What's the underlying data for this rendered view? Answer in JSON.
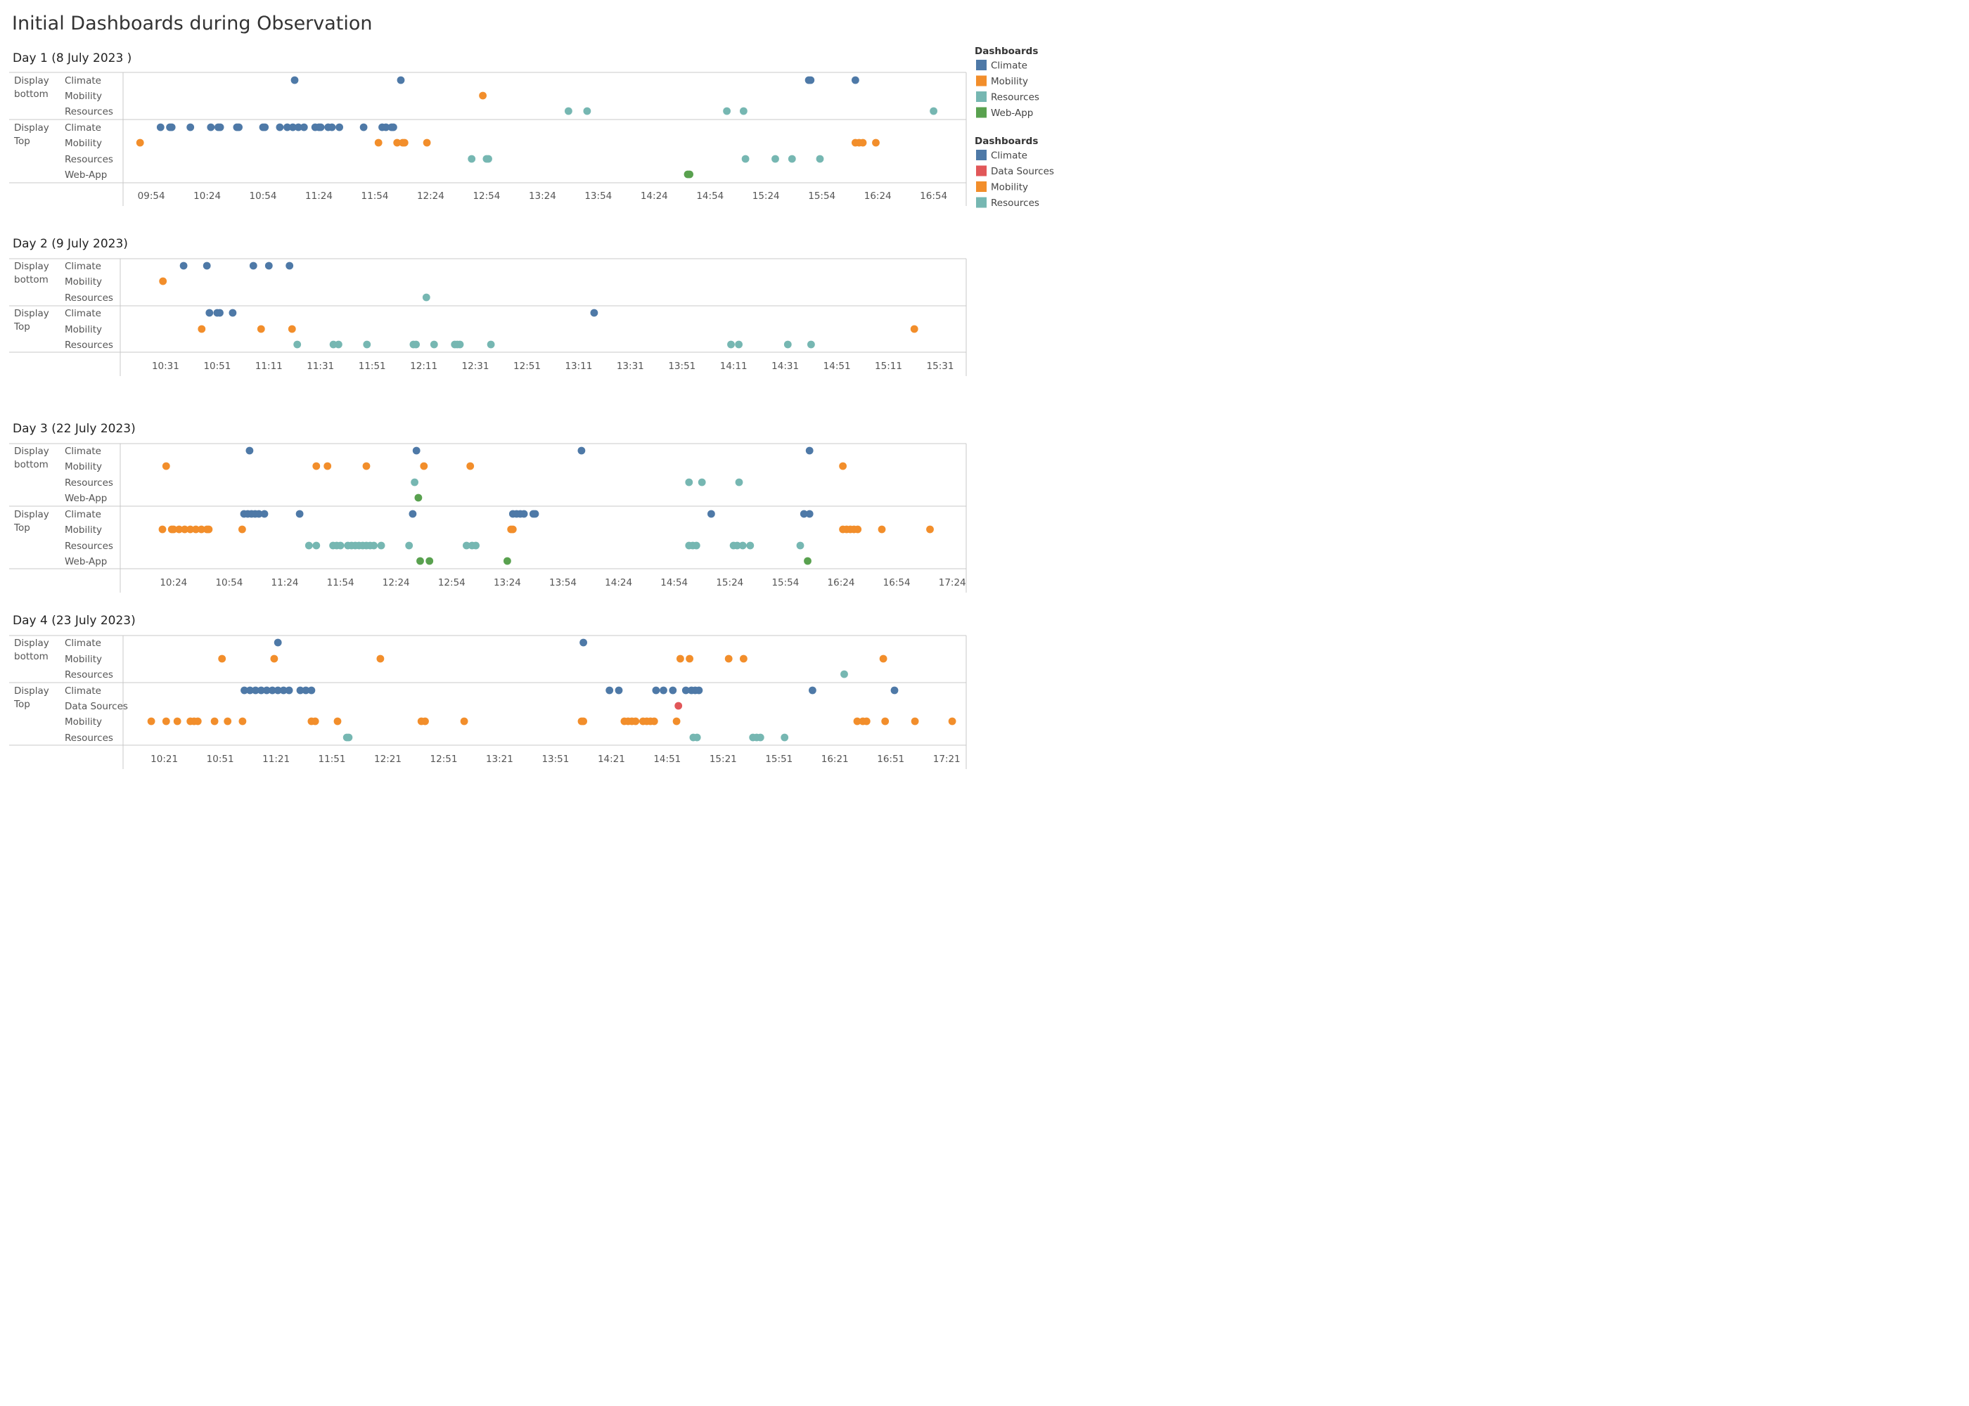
{
  "title": "Initial Dashboards during Observation",
  "colors": {
    "Climate": "#4e79a7",
    "Mobility": "#f28e2b",
    "Resources": "#76b7b2",
    "Web-App": "#59a14f",
    "Data Sources": "#e15759"
  },
  "legends": [
    {
      "title": "Dashboards",
      "items": [
        "Climate",
        "Mobility",
        "Resources",
        "Web-App"
      ]
    },
    {
      "title": "Dashboards",
      "items": [
        "Climate",
        "Data Sources",
        "Mobility",
        "Resources"
      ]
    }
  ],
  "chart_data": [
    {
      "type": "scatter",
      "title": "Day 1 (8 July 2023 )",
      "x_unit": "time of day",
      "xlim": [
        "09:40",
        "17:10"
      ],
      "x_ticks": [
        "09:54",
        "10:24",
        "10:54",
        "11:24",
        "11:54",
        "12:24",
        "12:54",
        "13:24",
        "13:54",
        "14:24",
        "14:54",
        "15:24",
        "15:54",
        "16:24",
        "16:54"
      ],
      "groups": [
        {
          "label": [
            "Display",
            "bottom"
          ],
          "rows": [
            {
              "name": "Climate",
              "times": [
                "11:11",
                "12:08",
                "15:47",
                "15:48",
                "16:12"
              ]
            },
            {
              "name": "Mobility",
              "times": [
                "12:52"
              ]
            },
            {
              "name": "Resources",
              "times": [
                "13:38",
                "13:48",
                "15:03",
                "15:12",
                "16:54"
              ]
            }
          ]
        },
        {
          "label": [
            "Display",
            "Top"
          ],
          "rows": [
            {
              "name": "Climate",
              "times": [
                "09:59",
                "10:04",
                "10:05",
                "10:15",
                "10:26",
                "10:30",
                "10:31",
                "10:40",
                "10:41",
                "10:54",
                "10:55",
                "11:03",
                "11:07",
                "11:10",
                "11:13",
                "11:16",
                "11:22",
                "11:24",
                "11:25",
                "11:29",
                "11:31",
                "11:35",
                "11:48",
                "11:58",
                "12:00",
                "12:03",
                "12:04"
              ]
            },
            {
              "name": "Mobility",
              "times": [
                "09:48",
                "11:56",
                "12:06",
                "12:09",
                "12:10",
                "12:22"
              ]
            },
            {
              "name": "Resources",
              "times": [
                "12:46",
                "12:54",
                "12:55"
              ]
            },
            {
              "name": "Web-App",
              "times": [
                "14:42",
                "14:43"
              ]
            }
          ]
        }
      ],
      "extra_points": [
        {
          "group": 1,
          "row": "Resources",
          "times": [
            "15:13",
            "15:29",
            "15:38",
            "15:53"
          ]
        },
        {
          "group": 1,
          "row": "Mobility",
          "times": [
            "16:12",
            "16:14",
            "16:16",
            "16:23"
          ]
        }
      ]
    },
    {
      "type": "scatter",
      "title": "Day 2 (9 July 2023)",
      "x_unit": "time of day",
      "xlim": [
        "10:14",
        "15:40"
      ],
      "x_ticks": [
        "10:31",
        "10:51",
        "11:11",
        "11:31",
        "11:51",
        "12:11",
        "12:31",
        "12:51",
        "13:11",
        "13:31",
        "13:51",
        "14:11",
        "14:31",
        "14:51",
        "15:11",
        "15:31"
      ],
      "groups": [
        {
          "label": [
            "Display",
            "bottom"
          ],
          "rows": [
            {
              "name": "Climate",
              "times": [
                "10:38",
                "10:47",
                "11:05",
                "11:11",
                "11:19"
              ]
            },
            {
              "name": "Mobility",
              "times": [
                "10:30"
              ]
            },
            {
              "name": "Resources",
              "times": [
                "12:12"
              ]
            }
          ]
        },
        {
          "label": [
            "Display",
            "Top"
          ],
          "rows": [
            {
              "name": "Climate",
              "times": [
                "10:48",
                "10:51",
                "10:52",
                "10:57",
                "13:17"
              ]
            },
            {
              "name": "Mobility",
              "times": [
                "10:45",
                "11:08",
                "11:20",
                "15:21"
              ]
            },
            {
              "name": "Resources",
              "times": [
                "11:22",
                "11:36",
                "11:38",
                "11:49",
                "12:07",
                "12:08",
                "12:15",
                "12:23",
                "12:24",
                "12:25",
                "12:37",
                "14:10",
                "14:13",
                "14:32",
                "14:41"
              ]
            }
          ]
        }
      ]
    },
    {
      "type": "scatter",
      "title": "Day 3 (22 July 2023)",
      "x_unit": "time of day",
      "xlim": [
        "09:56",
        "17:30"
      ],
      "x_ticks": [
        "10:24",
        "10:54",
        "11:24",
        "11:54",
        "12:24",
        "12:54",
        "13:24",
        "13:54",
        "14:24",
        "14:54",
        "15:24",
        "15:54",
        "16:24",
        "16:54",
        "17:24"
      ],
      "groups": [
        {
          "label": [
            "Display",
            "bottom"
          ],
          "rows": [
            {
              "name": "Climate",
              "times": [
                "11:05",
                "12:35",
                "14:04",
                "16:07"
              ]
            },
            {
              "name": "Mobility",
              "times": [
                "10:20",
                "11:41",
                "11:47",
                "12:08",
                "12:39",
                "13:04",
                "16:25"
              ]
            },
            {
              "name": "Resources",
              "times": [
                "12:34",
                "15:02",
                "15:09",
                "15:29"
              ]
            },
            {
              "name": "Web-App",
              "times": [
                "12:36"
              ]
            }
          ]
        },
        {
          "label": [
            "Display",
            "Top"
          ],
          "rows": [
            {
              "name": "Climate",
              "times": [
                "11:02",
                "11:04",
                "11:06",
                "11:08",
                "11:10",
                "11:13",
                "11:32",
                "12:33",
                "13:27",
                "13:29",
                "13:31",
                "13:33",
                "13:38",
                "13:39",
                "15:14",
                "16:04",
                "16:07"
              ]
            },
            {
              "name": "Mobility",
              "times": [
                "10:18",
                "10:23",
                "10:24",
                "10:27",
                "10:30",
                "10:33",
                "10:36",
                "10:39",
                "10:42",
                "10:43",
                "11:01",
                "13:26",
                "13:27",
                "16:25",
                "16:27",
                "16:29",
                "16:31",
                "16:33",
                "16:46",
                "17:12"
              ]
            },
            {
              "name": "Resources",
              "times": [
                "11:37",
                "11:41",
                "11:50",
                "11:52",
                "11:54",
                "11:58",
                "12:00",
                "12:02",
                "12:04",
                "12:06",
                "12:08",
                "12:10",
                "12:12",
                "12:16",
                "12:31",
                "13:02",
                "13:05",
                "13:07",
                "15:02",
                "15:04",
                "15:06",
                "15:26",
                "15:28",
                "15:31",
                "15:35",
                "16:02"
              ]
            },
            {
              "name": "Web-App",
              "times": [
                "12:37",
                "12:42",
                "13:24",
                "16:06"
              ]
            }
          ]
        }
      ]
    },
    {
      "type": "scatter",
      "title": "Day 4 (23 July 2023)",
      "x_unit": "time of day",
      "xlim": [
        "10:00",
        "17:30"
      ],
      "x_ticks": [
        "10:21",
        "10:51",
        "11:21",
        "11:51",
        "12:21",
        "12:51",
        "13:21",
        "13:51",
        "14:21",
        "14:51",
        "15:21",
        "15:51",
        "16:21",
        "16:51",
        "17:21"
      ],
      "groups": [
        {
          "label": [
            "Display",
            "bottom"
          ],
          "rows": [
            {
              "name": "Climate",
              "times": [
                "11:22",
                "14:06"
              ]
            },
            {
              "name": "Mobility",
              "times": [
                "10:52",
                "11:20",
                "12:17",
                "14:58",
                "15:03",
                "15:24",
                "15:32",
                "16:47"
              ]
            },
            {
              "name": "Resources",
              "times": [
                "16:26"
              ]
            }
          ]
        },
        {
          "label": [
            "Display",
            "Top"
          ],
          "rows": [
            {
              "name": "Climate",
              "times": [
                "11:04",
                "11:07",
                "11:10",
                "11:13",
                "11:16",
                "11:19",
                "11:22",
                "11:25",
                "11:28",
                "11:34",
                "11:37",
                "11:40",
                "14:20",
                "14:25",
                "14:45",
                "14:49",
                "14:54",
                "15:01",
                "15:04",
                "15:06",
                "15:08",
                "16:09",
                "16:53"
              ]
            },
            {
              "name": "Data Sources",
              "times": [
                "14:57"
              ]
            },
            {
              "name": "Mobility",
              "times": [
                "10:14",
                "10:22",
                "10:28",
                "10:35",
                "10:37",
                "10:39",
                "10:48",
                "10:55",
                "11:03",
                "11:40",
                "11:42",
                "11:54",
                "12:39",
                "12:41",
                "13:02",
                "14:05",
                "14:06",
                "14:28",
                "14:30",
                "14:32",
                "14:34",
                "14:38",
                "14:40",
                "14:42",
                "14:44",
                "14:56",
                "16:33",
                "16:36",
                "16:38",
                "16:48",
                "17:04",
                "17:24"
              ]
            },
            {
              "name": "Resources",
              "times": [
                "11:59",
                "12:00",
                "15:05",
                "15:07",
                "15:37",
                "15:39",
                "15:41",
                "15:54"
              ]
            }
          ]
        }
      ]
    }
  ]
}
